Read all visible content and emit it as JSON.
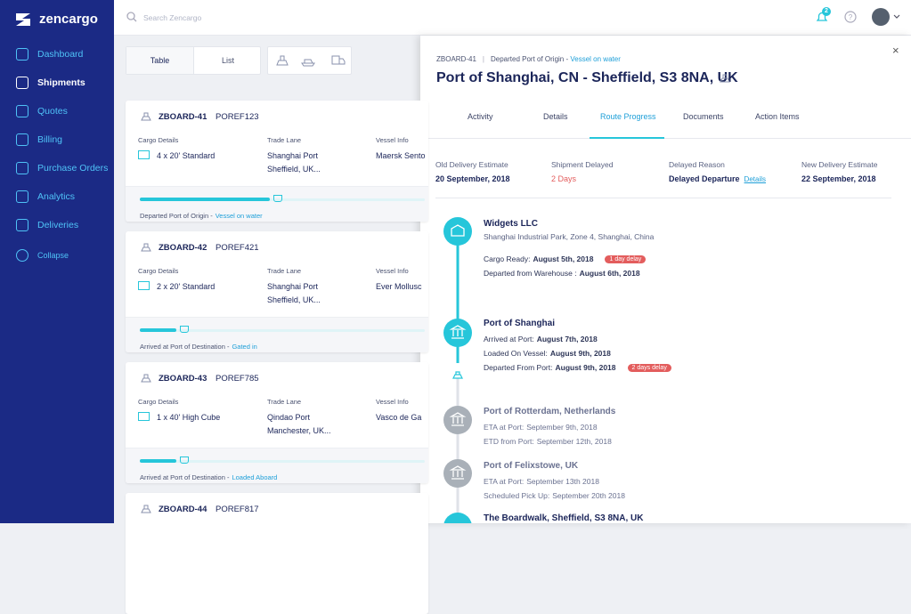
{
  "sidebar": {
    "logo": "zencargo",
    "nav": [
      "Dashboard",
      "Shipments",
      "Quotes",
      "Billing",
      "Purchase Orders",
      "Analytics",
      "Deliveries",
      "Collapse"
    ]
  },
  "topbar": {
    "search_placeholder": "Search Zencargo",
    "notification_count": 2
  },
  "toolbar": {
    "views": [
      "Table",
      "List"
    ]
  },
  "shipments": [
    {
      "id": "ZBOARD-41",
      "po_ref": "POREF123",
      "cargo_label": "Cargo Details",
      "cargo": "4 x 20' Standard",
      "lane_label": "Trade Lane",
      "origin": "Shanghai Port",
      "destination": "Sheffield, UK...",
      "vessel_label": "Vessel Info",
      "vessel": "Maersk Sento",
      "status": "Departed Port of Origin -",
      "status_detail": "Vessel on water"
    },
    {
      "id": "ZBOARD-42",
      "po_ref": "POREF421",
      "cargo_label": "Cargo Details",
      "cargo": "2 x 20' Standard",
      "lane_label": "Trade Lane",
      "origin": "Shanghai Port",
      "destination": "Sheffield, UK...",
      "vessel_label": "Vessel Info",
      "vessel": "Ever Mollusc",
      "status": "Arrived at Port of Destination -",
      "status_detail": "Gated in"
    },
    {
      "id": "ZBOARD-43",
      "po_ref": "POREF785",
      "cargo_label": "Cargo Details",
      "cargo": "1 x 40' High Cube",
      "lane_label": "Trade Lane",
      "origin": "Qindao Port",
      "destination": "Manchester, UK...",
      "vessel_label": "Vessel Info",
      "vessel": "Vasco de Ga",
      "status": "Arrived at Port of Destination -",
      "status_detail": "Loaded Aboard"
    },
    {
      "id": "ZBOARD-44",
      "po_ref": "POREF817"
    }
  ],
  "panel": {
    "id": "ZBOARD-41",
    "status": "Departed Port of Origin -",
    "status_detail": "Vessel on water",
    "title": "Port of Shanghai, CN - Sheffield, S3 8NA, UK",
    "close": "×",
    "tabs": [
      "Activity",
      "Details",
      "Route Progress",
      "Documents",
      "Action Items"
    ],
    "summary": [
      {
        "label": "Old Delivery Estimate",
        "value": "20 September, 2018"
      },
      {
        "label": "Shipment Delayed",
        "value": "2 Days"
      },
      {
        "label": "Delayed Reason",
        "value": "Delayed Departure",
        "link": "Details"
      },
      {
        "label": "New Delivery Estimate",
        "value": "22 September, 2018"
      }
    ],
    "timeline": [
      {
        "title": "Widgets LLC",
        "subtitle": "Shanghai Industrial Park, Zone 4, Shanghai, China",
        "state": "complete",
        "events": [
          {
            "label": "Cargo Ready:",
            "value": "August 5th, 2018",
            "badge": "1 day delay"
          },
          {
            "label": "Departed from Warehouse :",
            "value": "August 6th, 2018"
          }
        ]
      },
      {
        "title": "Port of Shanghai",
        "state": "complete",
        "events": [
          {
            "label": "Arrived at Port:",
            "value": "August 7th, 2018"
          },
          {
            "label": "Loaded On Vessel:",
            "value": "August 9th, 2018"
          },
          {
            "label": "Departed From Port:",
            "value": "August 9th, 2018",
            "badge": "2 days delay"
          }
        ]
      },
      {
        "title": "Port of Rotterdam, Netherlands",
        "state": "pending",
        "events": [
          {
            "label": "ETA at Port:",
            "value": "September 9th, 2018"
          },
          {
            "label": "ETD from Port:",
            "value": "September 12th, 2018"
          }
        ]
      },
      {
        "title": "Port of Felixstowe, UK",
        "state": "pending",
        "events": [
          {
            "label": "ETA at Port:",
            "value": "September 13th 2018"
          },
          {
            "label": "Scheduled Pick Up:",
            "value": "September 20th 2018"
          }
        ]
      },
      {
        "title": "The Boardwalk, Sheffield, S3 8NA, UK",
        "state": "complete",
        "events": []
      }
    ]
  }
}
